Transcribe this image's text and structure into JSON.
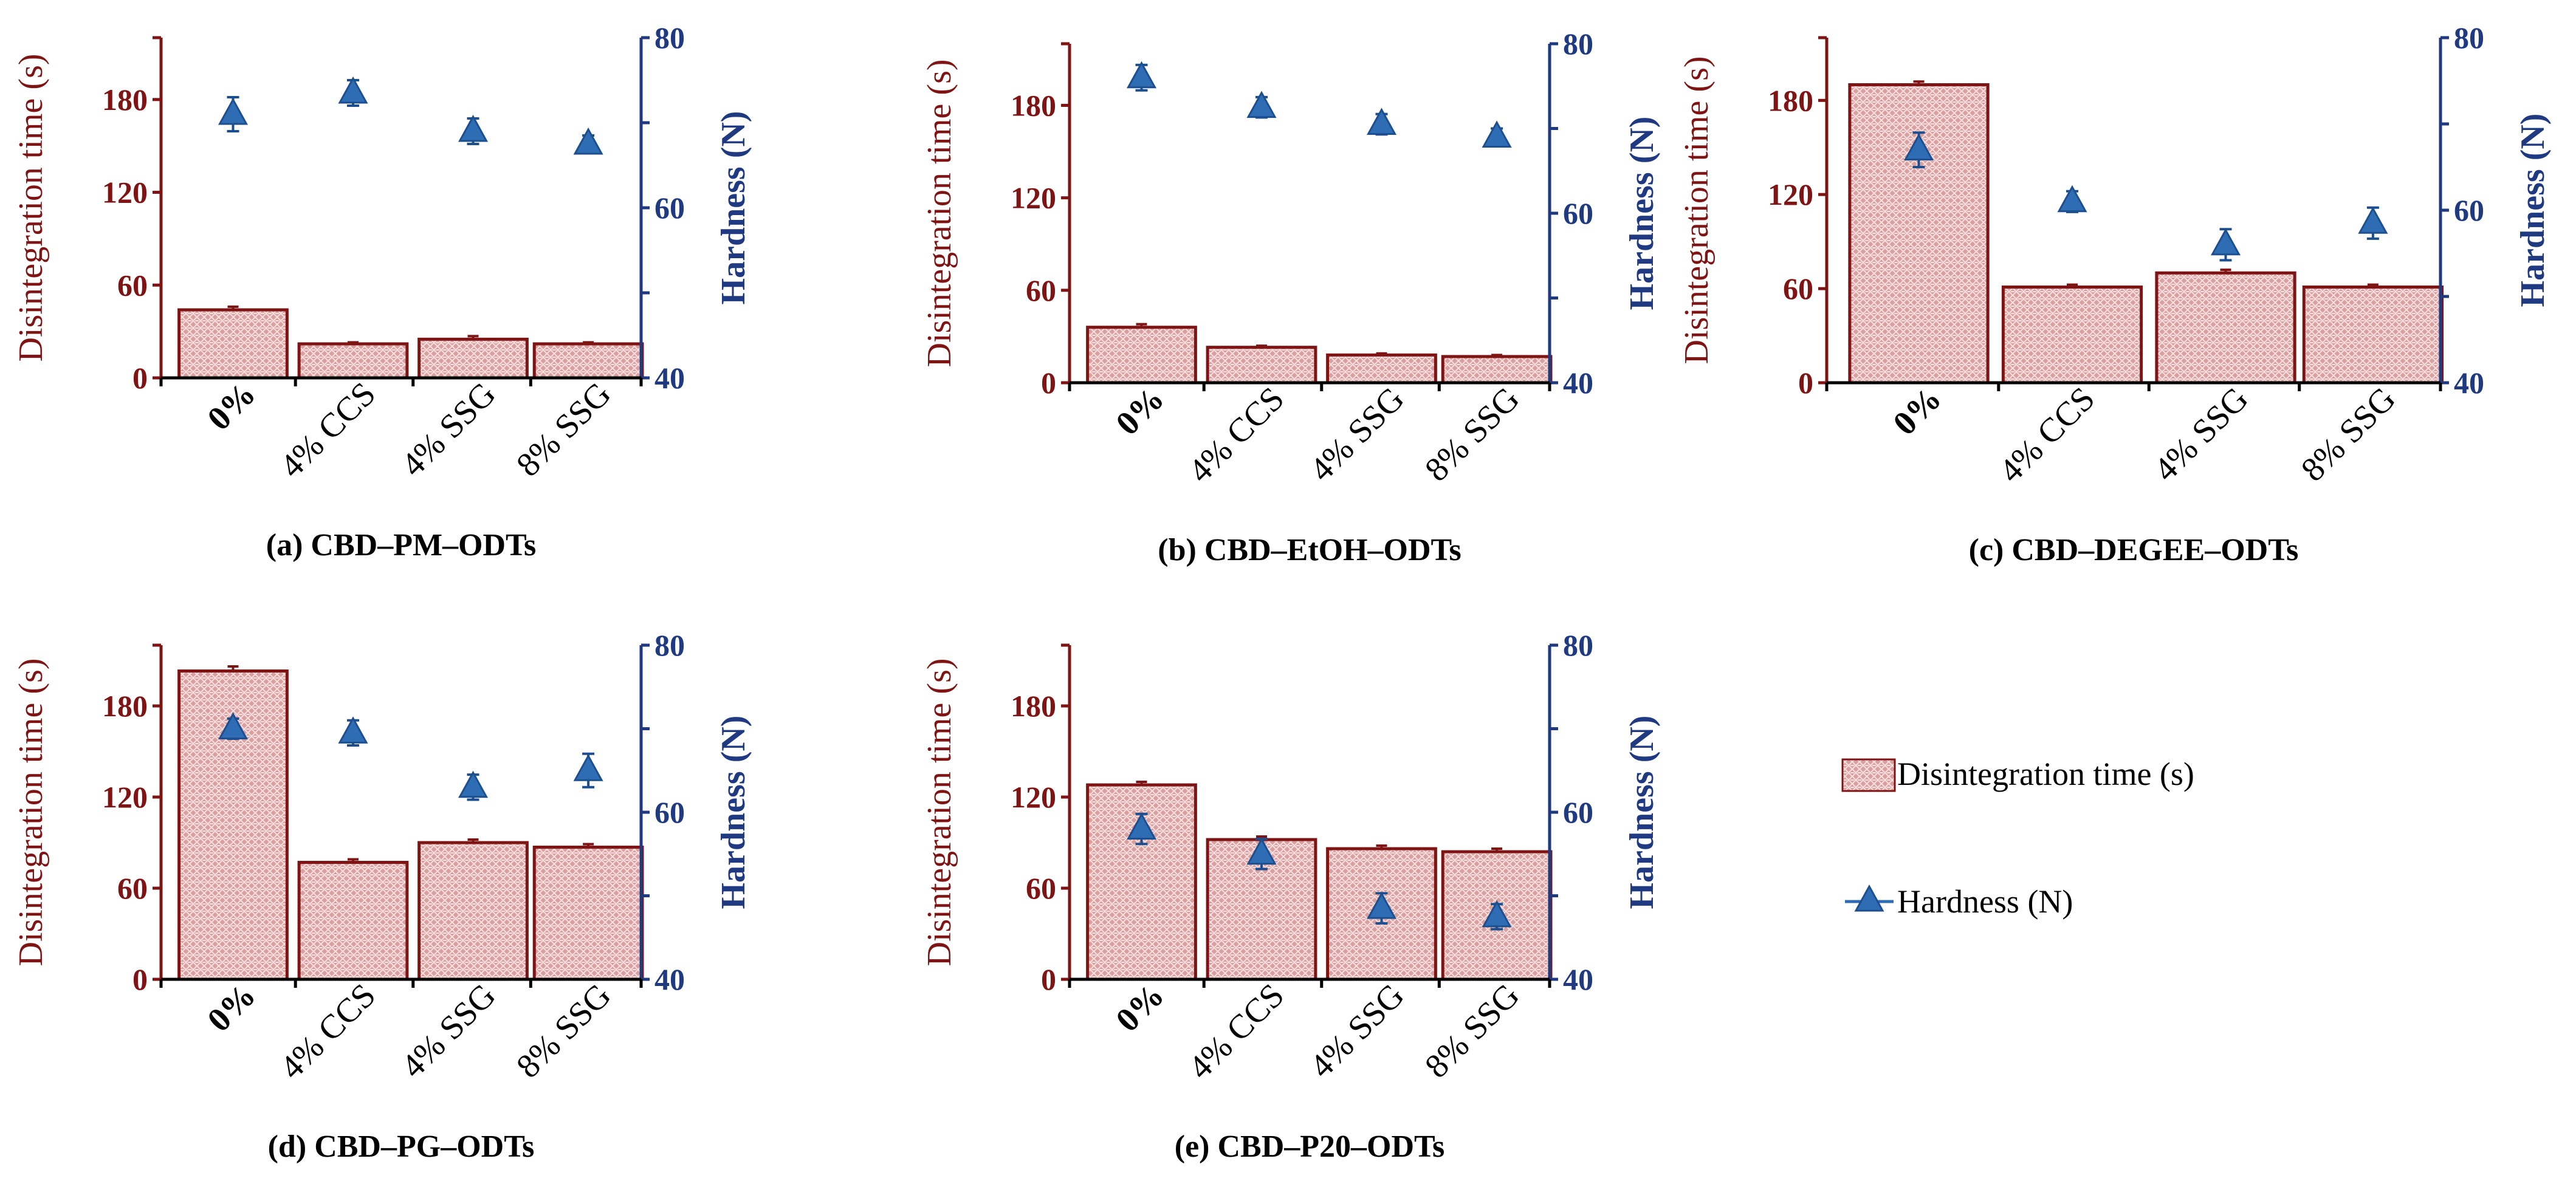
{
  "colors": {
    "bar_fill": "#d9a0a0",
    "bar_pattern": "#f5dede",
    "bar_edge": "#7f1414",
    "left_axis": "#7f1414",
    "right_axis": "#1f3a80",
    "marker": "#2e6db4",
    "marker_edge": "#1d4f8f"
  },
  "legend": {
    "bar_label": "Disintegration time (s)",
    "marker_label": "Hardness (N)"
  },
  "chart_data": [
    {
      "type": "bar",
      "title": "(a) CBD–PM–ODTs",
      "categories": [
        "0%",
        "4% CCS",
        "4% SSG",
        "8% SSG"
      ],
      "ylabel": "Disintegration  time (s)",
      "ylim": [
        0,
        220
      ],
      "yticks": [
        0,
        60,
        120,
        180
      ],
      "y2label": "Hardness (N)",
      "y2lim": [
        40,
        80
      ],
      "y2ticks": [
        40,
        60,
        80
      ],
      "series": [
        {
          "name": "Disintegration time (s)",
          "axis": "left",
          "values": [
            44,
            22,
            25,
            22
          ],
          "errors": [
            2,
            1,
            2,
            1
          ]
        },
        {
          "name": "Hardness (N)",
          "axis": "right",
          "values": [
            71,
            73.5,
            69,
            67.5
          ],
          "errors": [
            2,
            1.5,
            1.5,
            1
          ]
        }
      ]
    },
    {
      "type": "bar",
      "title": "(b) CBD–EtOH–ODTs",
      "categories": [
        "0%",
        "4% CCS",
        "4% SSG",
        "8% SSG"
      ],
      "ylabel": "Disintegration  time (s)",
      "ylim": [
        0,
        220
      ],
      "yticks": [
        0,
        60,
        120,
        180
      ],
      "y2label": "Hardness (N)",
      "y2lim": [
        40,
        80
      ],
      "y2ticks": [
        40,
        60,
        80
      ],
      "series": [
        {
          "name": "Disintegration time (s)",
          "axis": "left",
          "values": [
            36,
            23,
            18,
            17
          ],
          "errors": [
            2,
            1,
            1,
            1
          ]
        },
        {
          "name": "Hardness (N)",
          "axis": "right",
          "values": [
            76,
            72.5,
            70.5,
            69
          ],
          "errors": [
            1.5,
            1.2,
            1.2,
            1
          ]
        }
      ]
    },
    {
      "type": "bar",
      "title": "(c) CBD–DEGEE–ODTs",
      "categories": [
        "0%",
        "4% CCS",
        "4% SSG",
        "8% SSG"
      ],
      "ylabel": "Disintegration  time (s)",
      "ylim": [
        0,
        220
      ],
      "yticks": [
        0,
        60,
        120,
        180
      ],
      "y2label": "Hardness (N)",
      "y2lim": [
        40,
        80
      ],
      "y2ticks": [
        40,
        60,
        80
      ],
      "series": [
        {
          "name": "Disintegration time (s)",
          "axis": "left",
          "values": [
            190,
            61,
            70,
            61
          ],
          "errors": [
            2,
            1.5,
            2,
            1.5
          ]
        },
        {
          "name": "Hardness (N)",
          "axis": "right",
          "values": [
            67,
            61,
            56,
            58.5
          ],
          "errors": [
            2,
            1.2,
            1.8,
            1.8
          ]
        }
      ]
    },
    {
      "type": "bar",
      "title": "(d) CBD–PG–ODTs",
      "categories": [
        "0%",
        "4% CCS",
        "4% SSG",
        "8% SSG"
      ],
      "ylabel": "Disintegration  time (s)",
      "ylim": [
        0,
        220
      ],
      "yticks": [
        0,
        60,
        120,
        180
      ],
      "y2label": "Hardness (N)",
      "y2lim": [
        40,
        80
      ],
      "y2ticks": [
        40,
        60,
        80
      ],
      "series": [
        {
          "name": "Disintegration time (s)",
          "axis": "left",
          "values": [
            203,
            77,
            90,
            87
          ],
          "errors": [
            3,
            2,
            2,
            2
          ]
        },
        {
          "name": "Hardness (N)",
          "axis": "right",
          "values": [
            70,
            69.5,
            63,
            65
          ],
          "errors": [
            1.2,
            1.5,
            1.5,
            2
          ]
        }
      ]
    },
    {
      "type": "bar",
      "title": "(e) CBD–P20–ODTs",
      "categories": [
        "0%",
        "4% CCS",
        "4% SSG",
        "8% SSG"
      ],
      "ylabel": "Disintegration  time (s)",
      "ylim": [
        0,
        220
      ],
      "yticks": [
        0,
        60,
        120,
        180
      ],
      "y2label": "Hardness (N)",
      "y2lim": [
        40,
        80
      ],
      "y2ticks": [
        40,
        60,
        80
      ],
      "series": [
        {
          "name": "Disintegration time (s)",
          "axis": "left",
          "values": [
            128,
            92,
            86,
            84
          ],
          "errors": [
            2,
            2,
            2,
            2
          ]
        },
        {
          "name": "Hardness (N)",
          "axis": "right",
          "values": [
            58,
            55,
            48.5,
            47.5
          ],
          "errors": [
            1.8,
            1.8,
            1.8,
            1.5
          ]
        }
      ]
    }
  ]
}
